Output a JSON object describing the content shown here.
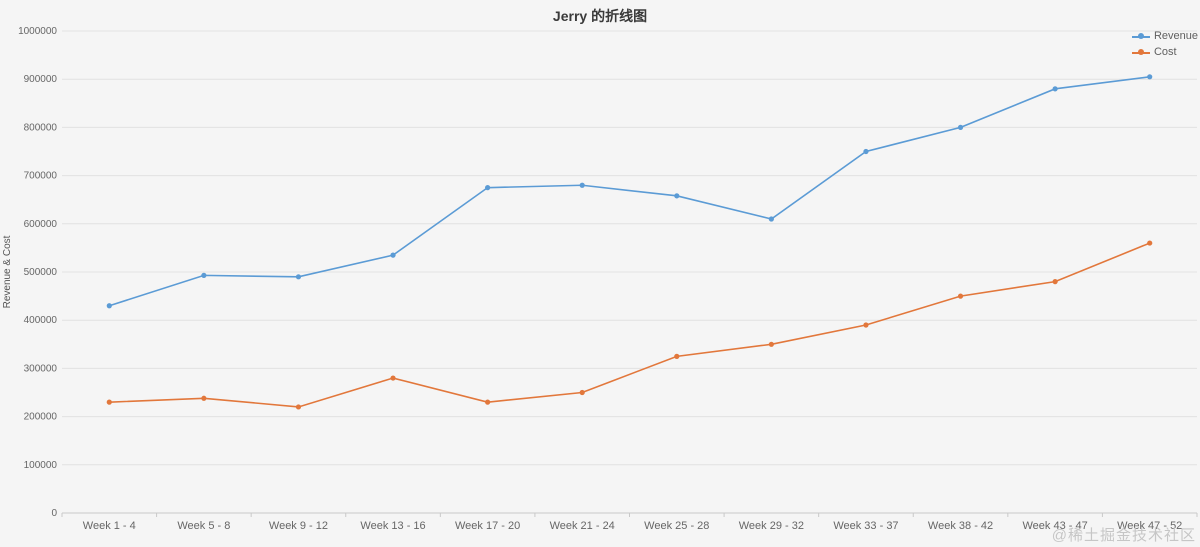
{
  "chart_data": {
    "type": "line",
    "title": "Jerry 的折线图",
    "xlabel": "",
    "ylabel": "Revenue & Cost",
    "categories": [
      "Week 1 - 4",
      "Week 5 - 8",
      "Week 9 - 12",
      "Week 13 - 16",
      "Week 17 - 20",
      "Week 21 - 24",
      "Week 25 - 28",
      "Week 29 - 32",
      "Week 33 - 37",
      "Week 38 - 42",
      "Week 43 - 47",
      "Week 47 - 52"
    ],
    "series": [
      {
        "name": "Revenue",
        "color": "#5b9bd5",
        "values": [
          430000,
          493000,
          490000,
          535000,
          675000,
          680000,
          658000,
          610000,
          750000,
          800000,
          880000,
          905000
        ]
      },
      {
        "name": "Cost",
        "color": "#e2773b",
        "values": [
          230000,
          238000,
          220000,
          280000,
          230000,
          250000,
          325000,
          350000,
          390000,
          450000,
          480000,
          560000
        ]
      }
    ],
    "ylim": [
      0,
      1000000
    ],
    "y_tick_step": 100000,
    "y_tick_labels": [
      "0",
      "100000",
      "200000",
      "300000",
      "400000",
      "500000",
      "600000",
      "700000",
      "800000",
      "900000",
      "1000000"
    ],
    "grid": true,
    "legend_position": "top-right"
  },
  "watermark": "@稀土掘金技术社区",
  "colors": {
    "background": "#f5f5f5",
    "grid": "#e2e2e2",
    "axis": "#c9c9c9",
    "tick_text": "#666666",
    "axis_title_text": "#555555",
    "title_text": "#3a3a3a",
    "watermark": "#c6c6c6"
  }
}
